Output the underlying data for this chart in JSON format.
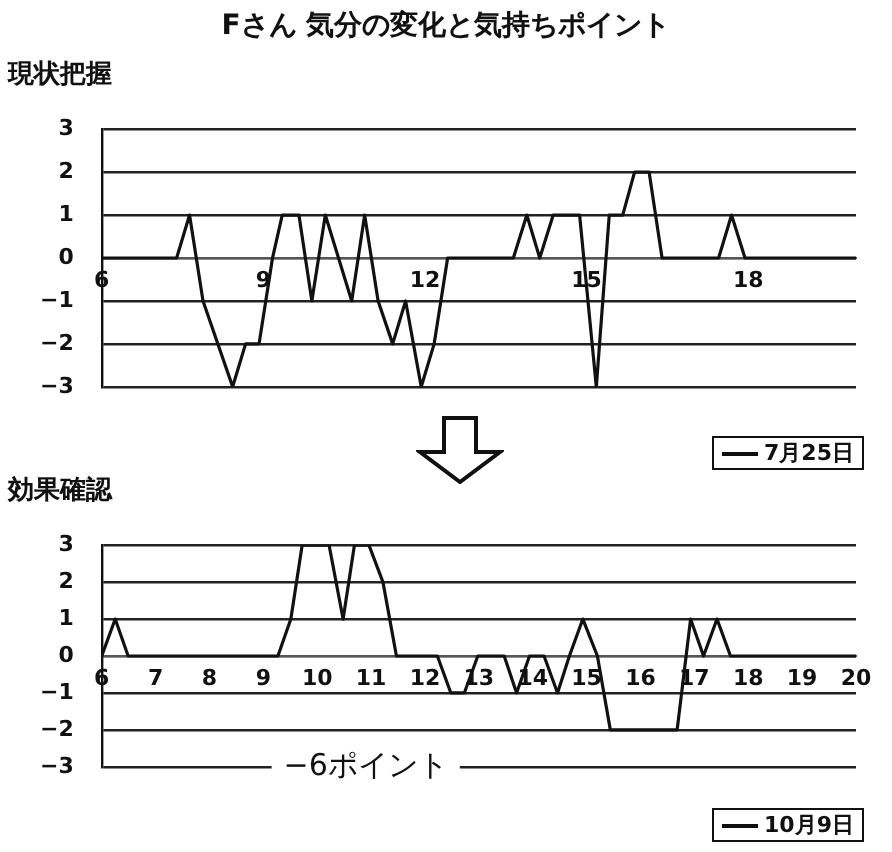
{
  "chart_data": [
    {
      "type": "line",
      "title": "Fさん 気分の変化と気持ちポイント",
      "ylabel": "現状把握",
      "series": [
        {
          "name": "7月25日",
          "color": "#111111",
          "x": [
            6,
            7.39,
            7.63,
            7.88,
            8.43,
            8.67,
            8.92,
            9.17,
            9.35,
            9.66,
            9.9,
            10.15,
            10.64,
            10.88,
            11.13,
            11.4,
            11.64,
            11.93,
            12.17,
            12.42,
            13.64,
            13.89,
            14.13,
            14.38,
            14.87,
            15.18,
            15.42,
            15.67,
            15.89,
            16.16,
            16.4,
            17.45,
            17.69,
            17.94,
            20
          ],
          "values": [
            0,
            0,
            1,
            -1,
            -3,
            -2,
            -2,
            0,
            1,
            1,
            -1,
            1,
            -1,
            1,
            -1,
            -2,
            -1,
            -3,
            -2,
            0,
            0,
            1,
            0,
            1,
            1,
            -3,
            1,
            1,
            2,
            2,
            0,
            0,
            1,
            0,
            0
          ]
        }
      ],
      "xlim": [
        6,
        20
      ],
      "xticks": [
        6,
        9,
        12,
        15,
        18
      ],
      "ylim": [
        -3,
        3
      ],
      "yticks": [
        -3,
        -2,
        -1,
        0,
        1,
        2,
        3
      ],
      "grid": "y",
      "legend": "bottom right",
      "marker": "none",
      "line_style": "solid"
    },
    {
      "type": "line",
      "ylabel": "効果確認",
      "annotations": [
        "−6ポイント"
      ],
      "series": [
        {
          "name": "10月9日",
          "color": "#111111",
          "x": [
            6,
            6.25,
            6.49,
            9.27,
            9.51,
            9.72,
            10.22,
            10.48,
            10.69,
            10.96,
            11.22,
            11.47,
            12.23,
            12.48,
            12.73,
            12.98,
            13.47,
            13.7,
            13.94,
            14.21,
            14.46,
            14.68,
            14.93,
            15.2,
            15.44,
            16.68,
            16.93,
            17.17,
            17.42,
            17.67,
            20
          ],
          "values": [
            0,
            1,
            0,
            0,
            1,
            3,
            3,
            1,
            3,
            3,
            2,
            0,
            0,
            -1,
            -1,
            0,
            0,
            -1,
            0,
            0,
            -1,
            0,
            1,
            0,
            -2,
            -2,
            1,
            0,
            1,
            0,
            0
          ]
        }
      ],
      "xlim": [
        6,
        20
      ],
      "xticks": [
        6,
        7,
        8,
        9,
        10,
        11,
        12,
        13,
        14,
        15,
        16,
        17,
        18,
        19,
        20
      ],
      "ylim": [
        -3,
        3
      ],
      "yticks": [
        -3,
        -2,
        -1,
        0,
        1,
        2,
        3
      ],
      "grid": "y",
      "legend": "bottom right",
      "marker": "none",
      "line_style": "solid"
    }
  ]
}
